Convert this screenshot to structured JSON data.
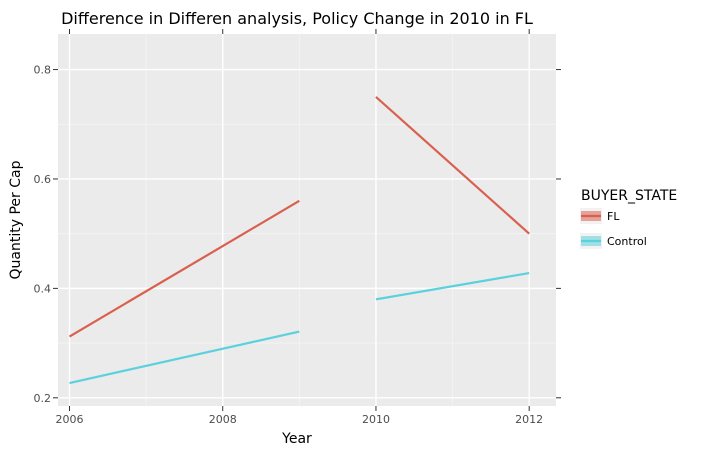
{
  "chart_data": {
    "type": "line",
    "title": "Difference in Differen analysis, Policy Change in 2010 in FL",
    "xlabel": "Year",
    "ylabel": "Quantity Per Cap",
    "xlim": [
      2005.85,
      2012.35
    ],
    "ylim": [
      0.185,
      0.865
    ],
    "x_ticks": [
      2006,
      2008,
      2010,
      2012
    ],
    "x_tick_labels": [
      "2006",
      "2008",
      "2010",
      "2012"
    ],
    "y_ticks": [
      0.2,
      0.4,
      0.6,
      0.8
    ],
    "y_tick_labels": [
      "0.2",
      "0.4",
      "0.6",
      "0.8"
    ],
    "grid": true,
    "legend": {
      "title": "BUYER_STATE",
      "position": "right",
      "entries": [
        "FL",
        "Control"
      ]
    },
    "series": [
      {
        "name": "FL",
        "color": "#d9604f",
        "segments": [
          [
            [
              2006,
              0.312
            ],
            [
              2009,
              0.56
            ]
          ],
          [
            [
              2010,
              0.75
            ],
            [
              2012,
              0.5
            ]
          ]
        ]
      },
      {
        "name": "Control",
        "color": "#5ad1dc",
        "segments": [
          [
            [
              2006,
              0.227
            ],
            [
              2009,
              0.321
            ]
          ],
          [
            [
              2010,
              0.38
            ],
            [
              2012,
              0.428
            ]
          ]
        ]
      }
    ]
  }
}
